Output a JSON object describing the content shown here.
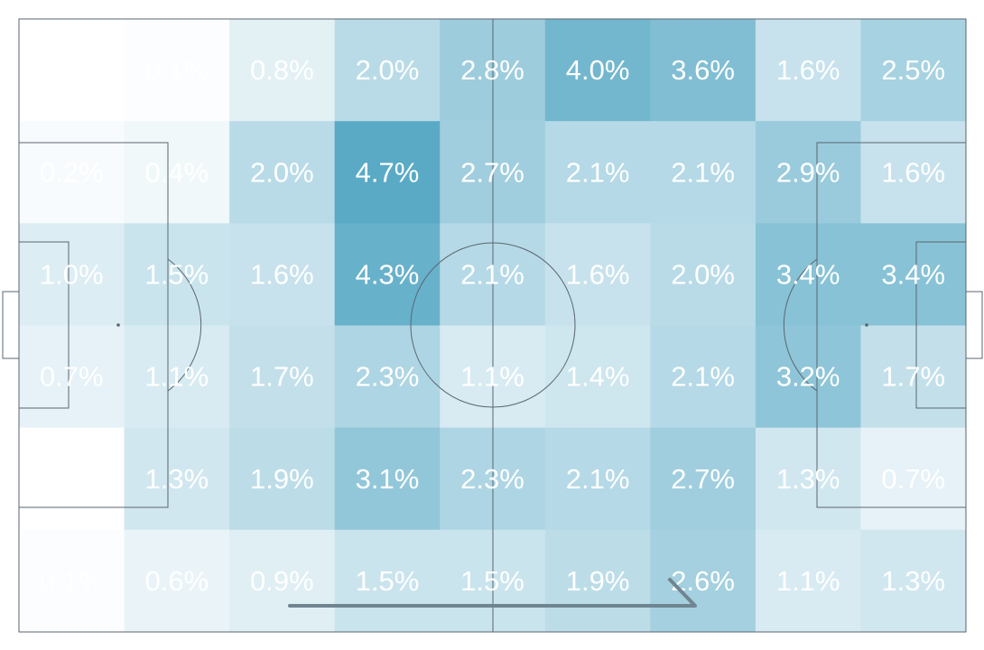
{
  "chart_data": {
    "type": "heatmap",
    "title": "",
    "rows": 6,
    "columns": 9,
    "values": [
      [
        0.0,
        0.1,
        0.8,
        2.0,
        2.8,
        4.0,
        3.6,
        1.6,
        2.5
      ],
      [
        0.2,
        0.4,
        2.0,
        4.7,
        2.7,
        2.1,
        2.1,
        2.9,
        1.6
      ],
      [
        1.0,
        1.5,
        1.6,
        4.3,
        2.1,
        1.6,
        2.0,
        3.4,
        3.4
      ],
      [
        0.7,
        1.1,
        1.7,
        2.3,
        1.1,
        1.4,
        2.1,
        3.2,
        1.7
      ],
      [
        0.0,
        1.3,
        1.9,
        3.1,
        2.3,
        2.1,
        2.7,
        1.3,
        0.7
      ],
      [
        0.1,
        0.6,
        0.9,
        1.5,
        1.5,
        1.9,
        2.6,
        1.1,
        1.3
      ]
    ],
    "labels": [
      [
        "",
        "0.1%",
        "0.8%",
        "2.0%",
        "2.8%",
        "4.0%",
        "3.6%",
        "1.6%",
        "2.5%"
      ],
      [
        "0.2%",
        "0.4%",
        "2.0%",
        "4.7%",
        "2.7%",
        "2.1%",
        "2.1%",
        "2.9%",
        "1.6%"
      ],
      [
        "1.0%",
        "1.5%",
        "1.6%",
        "4.3%",
        "2.1%",
        "1.6%",
        "2.0%",
        "3.4%",
        "3.4%"
      ],
      [
        "0.7%",
        "1.1%",
        "1.7%",
        "2.3%",
        "1.1%",
        "1.4%",
        "2.1%",
        "3.2%",
        "1.7%"
      ],
      [
        "0.0%",
        "1.3%",
        "1.9%",
        "3.1%",
        "2.3%",
        "2.1%",
        "2.7%",
        "1.3%",
        "0.7%"
      ],
      [
        "0.1%",
        "0.6%",
        "0.9%",
        "1.5%",
        "1.5%",
        "1.9%",
        "2.6%",
        "1.1%",
        "1.3%"
      ]
    ],
    "color_scale": {
      "low": "#ffffff",
      "high": "#5aaac6",
      "max_value": 4.7
    },
    "background": "football-pitch",
    "annotations": [
      "attack-direction-arrow"
    ],
    "legend": "none",
    "grid": false
  },
  "colors": {
    "pitch_line": "#5a6670",
    "label": "#ffffff",
    "arrow": "#6f8590"
  }
}
